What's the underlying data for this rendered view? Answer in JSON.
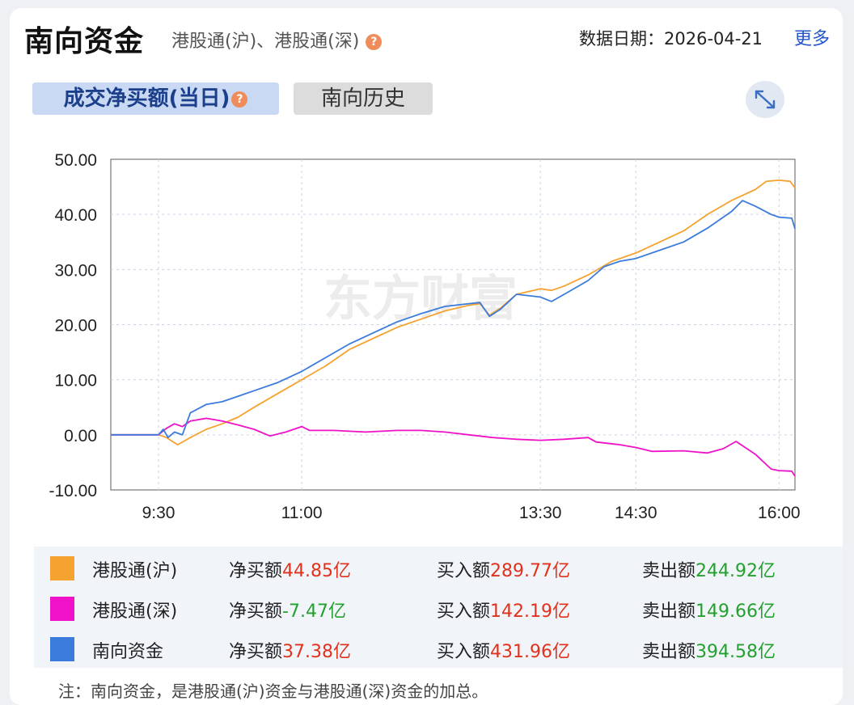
{
  "header": {
    "title": "南向资金",
    "subtitle": "港股通(沪)、港股通(深)",
    "help_icon": "?",
    "date_label": "数据日期：2026-04-21",
    "more_link": "更多"
  },
  "tabs": [
    {
      "label": "成交净买额(当日)",
      "active": true
    },
    {
      "label": "南向历史",
      "active": false
    }
  ],
  "expand_icon": "expand-icon",
  "colors": {
    "sh": "#f6a230",
    "sz": "#ef12c8",
    "total": "#3b7bdc",
    "red": "#e0321c",
    "green": "#23a12e"
  },
  "chart_data": {
    "type": "line",
    "watermark": "东方财富",
    "x_ticks": [
      "9:30",
      "11:00",
      "13:30",
      "14:30",
      "16:00"
    ],
    "y_ticks": [
      "50.00",
      "40.00",
      "30.00",
      "20.00",
      "10.00",
      "0.00",
      "-10.00"
    ],
    "ylim": [
      -10,
      50
    ],
    "grid": true,
    "series": [
      {
        "name": "港股通(沪)",
        "color": "#f6a230",
        "points": [
          [
            "9:00",
            0
          ],
          [
            "9:30",
            0
          ],
          [
            "9:35",
            -0.5
          ],
          [
            "9:42",
            -1.8
          ],
          [
            "9:50",
            -0.5
          ],
          [
            "10:00",
            1.0
          ],
          [
            "10:10",
            2.0
          ],
          [
            "10:20",
            3.2
          ],
          [
            "10:30",
            5.0
          ],
          [
            "10:45",
            7.5
          ],
          [
            "11:00",
            10.0
          ],
          [
            "11:15",
            12.5
          ],
          [
            "11:30",
            15.5
          ],
          [
            "11:45",
            17.5
          ],
          [
            "12:00",
            19.5
          ],
          [
            "12:15",
            21.0
          ],
          [
            "12:30",
            22.5
          ],
          [
            "12:45",
            23.5
          ],
          [
            "12:52",
            23.8
          ],
          [
            "12:58",
            21.7
          ],
          [
            "13:05",
            23.0
          ],
          [
            "13:15",
            25.5
          ],
          [
            "13:30",
            26.5
          ],
          [
            "13:37",
            26.2
          ],
          [
            "13:45",
            27.0
          ],
          [
            "14:00",
            29.0
          ],
          [
            "14:15",
            31.5
          ],
          [
            "14:30",
            33.0
          ],
          [
            "14:45",
            35.0
          ],
          [
            "15:00",
            37.0
          ],
          [
            "15:15",
            40.0
          ],
          [
            "15:30",
            42.5
          ],
          [
            "15:45",
            44.5
          ],
          [
            "15:52",
            46.0
          ],
          [
            "16:00",
            46.2
          ],
          [
            "16:07",
            46.0
          ],
          [
            "16:10",
            44.8
          ]
        ]
      },
      {
        "name": "港股通(深)",
        "color": "#ef12c8",
        "points": [
          [
            "9:00",
            0
          ],
          [
            "9:30",
            0
          ],
          [
            "9:35",
            1.2
          ],
          [
            "9:40",
            2.0
          ],
          [
            "9:45",
            1.5
          ],
          [
            "9:50",
            2.5
          ],
          [
            "10:00",
            3.0
          ],
          [
            "10:10",
            2.5
          ],
          [
            "10:20",
            1.8
          ],
          [
            "10:30",
            1.0
          ],
          [
            "10:40",
            -0.2
          ],
          [
            "10:50",
            0.5
          ],
          [
            "11:00",
            1.5
          ],
          [
            "11:05",
            0.8
          ],
          [
            "11:20",
            0.8
          ],
          [
            "11:40",
            0.5
          ],
          [
            "12:00",
            0.8
          ],
          [
            "12:15",
            0.8
          ],
          [
            "12:30",
            0.5
          ],
          [
            "12:45",
            0
          ],
          [
            "13:00",
            -0.5
          ],
          [
            "13:15",
            -0.8
          ],
          [
            "13:30",
            -1.0
          ],
          [
            "13:45",
            -0.8
          ],
          [
            "14:00",
            -0.5
          ],
          [
            "14:05",
            -1.3
          ],
          [
            "14:20",
            -1.8
          ],
          [
            "14:30",
            -2.3
          ],
          [
            "14:40",
            -3.0
          ],
          [
            "15:00",
            -2.9
          ],
          [
            "15:15",
            -3.3
          ],
          [
            "15:25",
            -2.5
          ],
          [
            "15:33",
            -1.2
          ],
          [
            "15:45",
            -3.5
          ],
          [
            "15:55",
            -6.2
          ],
          [
            "16:00",
            -6.5
          ],
          [
            "16:08",
            -6.6
          ],
          [
            "16:10",
            -7.5
          ]
        ]
      },
      {
        "name": "南向资金",
        "color": "#3b7bdc",
        "points": [
          [
            "9:00",
            0
          ],
          [
            "9:30",
            0
          ],
          [
            "9:33",
            1.0
          ],
          [
            "9:36",
            -0.5
          ],
          [
            "9:40",
            0.5
          ],
          [
            "9:45",
            0
          ],
          [
            "9:50",
            4.0
          ],
          [
            "10:00",
            5.5
          ],
          [
            "10:10",
            6.0
          ],
          [
            "10:20",
            7.0
          ],
          [
            "10:30",
            8.0
          ],
          [
            "10:45",
            9.5
          ],
          [
            "11:00",
            11.5
          ],
          [
            "11:15",
            14.0
          ],
          [
            "11:30",
            16.5
          ],
          [
            "11:45",
            18.5
          ],
          [
            "12:00",
            20.5
          ],
          [
            "12:15",
            22.0
          ],
          [
            "12:30",
            23.3
          ],
          [
            "12:45",
            23.8
          ],
          [
            "12:52",
            24.0
          ],
          [
            "12:58",
            21.5
          ],
          [
            "13:05",
            22.8
          ],
          [
            "13:15",
            25.5
          ],
          [
            "13:30",
            25.0
          ],
          [
            "13:37",
            24.2
          ],
          [
            "13:45",
            25.5
          ],
          [
            "14:00",
            28.0
          ],
          [
            "14:10",
            30.5
          ],
          [
            "14:20",
            31.5
          ],
          [
            "14:30",
            32.0
          ],
          [
            "14:45",
            33.5
          ],
          [
            "15:00",
            35.0
          ],
          [
            "15:15",
            37.5
          ],
          [
            "15:30",
            40.5
          ],
          [
            "15:37",
            42.5
          ],
          [
            "15:45",
            41.5
          ],
          [
            "15:55",
            40.0
          ],
          [
            "16:00",
            39.5
          ],
          [
            "16:08",
            39.3
          ],
          [
            "16:10",
            37.4
          ]
        ]
      }
    ]
  },
  "legend": [
    {
      "name": "港股通(沪)",
      "net_label": "净买额",
      "net_value": "44.85亿",
      "net_color": "red",
      "buy_label": "买入额",
      "buy_value": "289.77亿",
      "sell_label": "卖出额",
      "sell_value": "244.92亿"
    },
    {
      "name": "港股通(深)",
      "net_label": "净买额",
      "net_value": "-7.47亿",
      "net_color": "green",
      "buy_label": "买入额",
      "buy_value": "142.19亿",
      "sell_label": "卖出额",
      "sell_value": "149.66亿"
    },
    {
      "name": "南向资金",
      "net_label": "净买额",
      "net_value": "37.38亿",
      "net_color": "red",
      "buy_label": "买入额",
      "buy_value": "431.96亿",
      "sell_label": "卖出额",
      "sell_value": "394.58亿"
    }
  ],
  "note": "注：南向资金，是港股通(沪)资金与港股通(深)资金的加总。"
}
